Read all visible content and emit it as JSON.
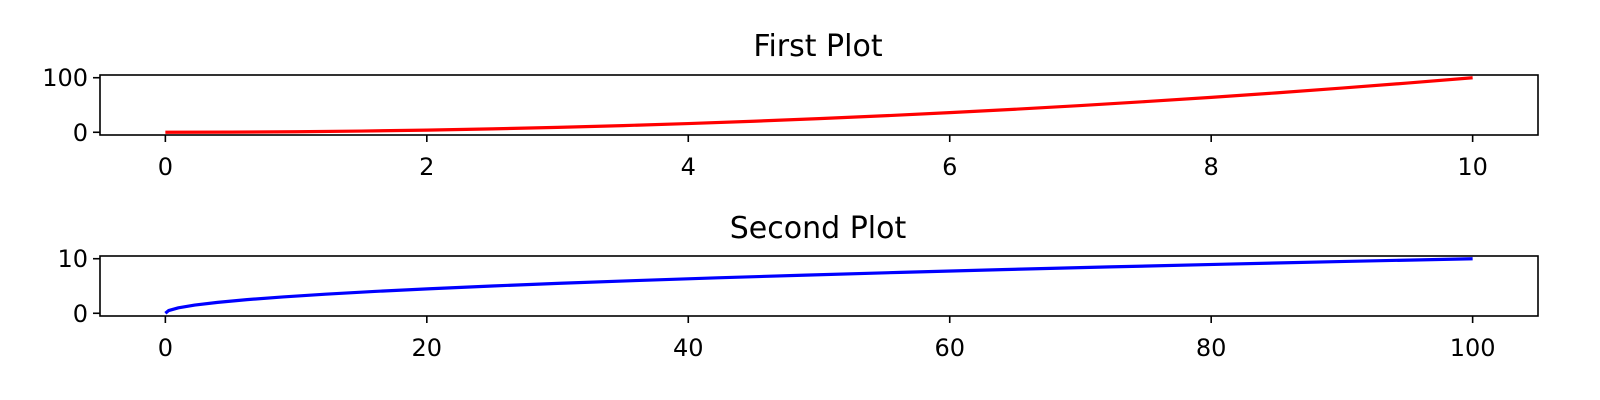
{
  "chart_data": [
    {
      "type": "line",
      "title": "First Plot",
      "xlabel": "",
      "ylabel": "",
      "xlim": [
        -0.5,
        10.5
      ],
      "ylim": [
        -5,
        105
      ],
      "x_ticks": [
        0,
        2,
        4,
        6,
        8,
        10
      ],
      "y_ticks": [
        0,
        100
      ],
      "grid": false,
      "series": [
        {
          "color": "#ff0000",
          "x": [
            0,
            0.5,
            1,
            1.5,
            2,
            2.5,
            3,
            3.5,
            4,
            4.5,
            5,
            5.5,
            6,
            6.5,
            7,
            7.5,
            8,
            8.5,
            9,
            9.5,
            10
          ],
          "y": [
            0,
            0.25,
            1,
            2.25,
            4,
            6.25,
            9,
            12.25,
            16,
            20.25,
            25,
            30.25,
            36,
            42.25,
            49,
            56.25,
            64,
            72.25,
            81,
            90.25,
            100
          ]
        }
      ]
    },
    {
      "type": "line",
      "title": "Second Plot",
      "xlabel": "",
      "ylabel": "",
      "xlim": [
        -5,
        105
      ],
      "ylim": [
        -0.5,
        10.5
      ],
      "x_ticks": [
        0,
        20,
        40,
        60,
        80,
        100
      ],
      "y_ticks": [
        0,
        10
      ],
      "grid": false,
      "series": [
        {
          "color": "#0000ff",
          "x": [
            0,
            0.25,
            1,
            2.25,
            4,
            6.25,
            9,
            12.25,
            16,
            20.25,
            25,
            30.25,
            36,
            42.25,
            49,
            56.25,
            64,
            72.25,
            81,
            90.25,
            100
          ],
          "y": [
            0,
            0.5,
            1,
            1.5,
            2,
            2.5,
            3,
            3.5,
            4,
            4.5,
            5,
            5.5,
            6,
            6.5,
            7,
            7.5,
            8,
            8.5,
            9,
            9.5,
            10
          ]
        }
      ]
    }
  ]
}
